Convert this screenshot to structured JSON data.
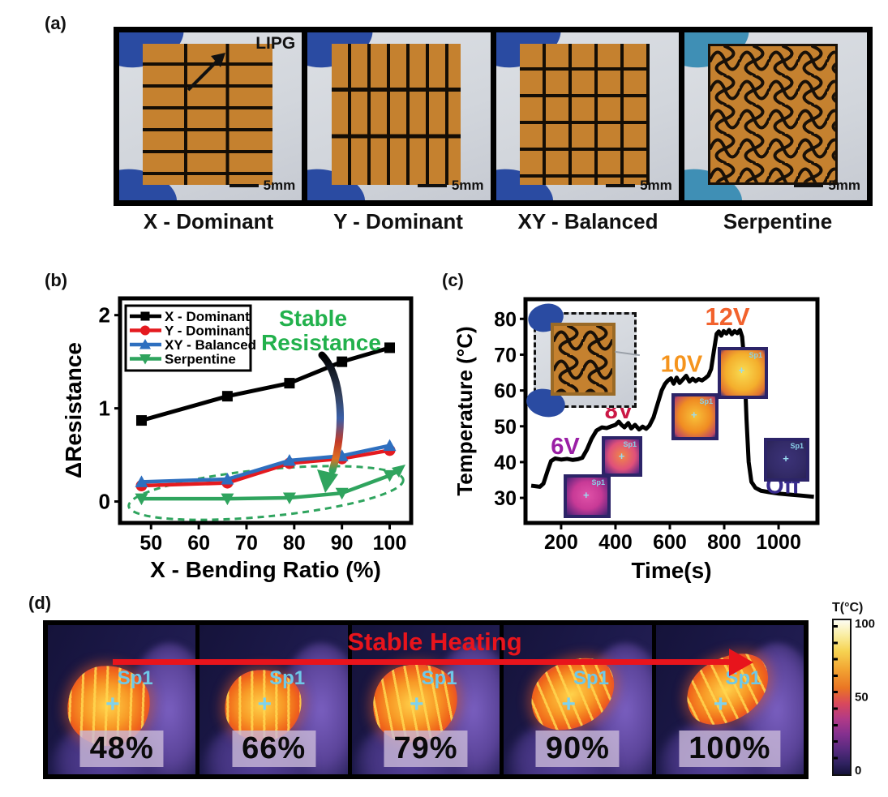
{
  "panels": {
    "a": {
      "label": "(a)",
      "lipg_label": "LIPG",
      "scale_label": "5mm",
      "captions": [
        "X - Dominant",
        "Y - Dominant",
        "XY - Balanced",
        "Serpentine"
      ]
    },
    "b": {
      "label": "(b)"
    },
    "c": {
      "label": "(c)",
      "insets": [
        {
          "spot": "Sp1"
        },
        {
          "spot": "Sp1"
        },
        {
          "spot": "Sp1"
        },
        {
          "spot": "Sp1"
        },
        {
          "spot": "Sp1"
        }
      ]
    },
    "d": {
      "label": "(d)",
      "heading": "Stable Heating",
      "heading_color": "#e8141c",
      "frames": [
        {
          "percent": "48%",
          "spot": "Sp1"
        },
        {
          "percent": "66%",
          "spot": "Sp1"
        },
        {
          "percent": "79%",
          "spot": "Sp1"
        },
        {
          "percent": "90%",
          "spot": "Sp1"
        },
        {
          "percent": "100%",
          "spot": "Sp1"
        }
      ],
      "colorbar": {
        "title": "T(°C)",
        "ticks": [
          "100",
          "50",
          "0"
        ],
        "min": 0,
        "max": 100
      }
    }
  },
  "chart_data": [
    {
      "id": "bending-resistance",
      "type": "line",
      "title": "",
      "xlabel": "X - Bending Ratio (%)",
      "ylabel": "ΔResistance",
      "xlim": [
        43.5,
        104.5
      ],
      "ylim": [
        -0.23,
        2.18
      ],
      "xticks": [
        50,
        60,
        70,
        80,
        90,
        100
      ],
      "yticks": [
        0,
        1,
        2
      ],
      "grid": false,
      "legend_position": "top-left",
      "x": [
        48,
        66,
        79,
        90,
        100
      ],
      "series": [
        {
          "name": "X - Dominant",
          "color": "#000000",
          "marker": "square",
          "values": [
            0.87,
            1.13,
            1.27,
            1.5,
            1.65
          ]
        },
        {
          "name": "Y - Dominant",
          "color": "#e41a1f",
          "marker": "circle",
          "values": [
            0.17,
            0.2,
            0.41,
            0.46,
            0.55
          ]
        },
        {
          "name": "XY - Balanced",
          "color": "#2e6fbf",
          "marker": "triangle-up",
          "values": [
            0.21,
            0.24,
            0.44,
            0.49,
            0.6
          ]
        },
        {
          "name": "Serpentine",
          "color": "#2fa45e",
          "marker": "triangle-down",
          "values": [
            0.03,
            0.03,
            0.04,
            0.09,
            0.28
          ]
        }
      ],
      "annotation": {
        "lines": [
          "Stable",
          "Resistance"
        ],
        "color": "#22b14c"
      }
    },
    {
      "id": "heater-temperature",
      "type": "line",
      "title": "",
      "xlabel": "Time(s)",
      "ylabel": "Temperature (°C)",
      "xlim": [
        69,
        1143
      ],
      "ylim": [
        23,
        85.5
      ],
      "xticks": [
        200,
        400,
        600,
        800,
        1000
      ],
      "yticks": [
        30,
        40,
        50,
        60,
        70,
        80
      ],
      "grid": false,
      "series": [
        {
          "name": "temperature",
          "color": "#000000",
          "points": [
            [
              90,
              33.4
            ],
            [
              122,
              33.1
            ],
            [
              135,
              34
            ],
            [
              150,
              37.5
            ],
            [
              163,
              40.3
            ],
            [
              178,
              41
            ],
            [
              200,
              40.7
            ],
            [
              222,
              40.9
            ],
            [
              243,
              40.6
            ],
            [
              262,
              40.8
            ],
            [
              278,
              41.2
            ],
            [
              295,
              43.5
            ],
            [
              312,
              46.5
            ],
            [
              330,
              48.8
            ],
            [
              350,
              49.7
            ],
            [
              368,
              49.5
            ],
            [
              385,
              50
            ],
            [
              400,
              50.4
            ],
            [
              412,
              51.3
            ],
            [
              422,
              50.4
            ],
            [
              433,
              49.7
            ],
            [
              447,
              50.9
            ],
            [
              458,
              49.4
            ],
            [
              472,
              50.4
            ],
            [
              487,
              49.1
            ],
            [
              500,
              49.9
            ],
            [
              513,
              49.3
            ],
            [
              525,
              50.2
            ],
            [
              540,
              52.5
            ],
            [
              556,
              56.5
            ],
            [
              570,
              60
            ],
            [
              582,
              61.8
            ],
            [
              593,
              62.8
            ],
            [
              604,
              63.4
            ],
            [
              614,
              61.9
            ],
            [
              625,
              63.6
            ],
            [
              636,
              62.1
            ],
            [
              648,
              63.1
            ],
            [
              660,
              64.1
            ],
            [
              672,
              62.5
            ],
            [
              684,
              63.3
            ],
            [
              695,
              62.6
            ],
            [
              706,
              63.2
            ],
            [
              718,
              62.8
            ],
            [
              730,
              63.4
            ],
            [
              742,
              64.2
            ],
            [
              752,
              66
            ],
            [
              762,
              71
            ],
            [
              772,
              75.8
            ],
            [
              780,
              76.5
            ],
            [
              789,
              75.3
            ],
            [
              798,
              76.6
            ],
            [
              808,
              75.9
            ],
            [
              818,
              76.9
            ],
            [
              828,
              75.7
            ],
            [
              838,
              76.6
            ],
            [
              848,
              76
            ],
            [
              858,
              76.9
            ],
            [
              866,
              75
            ],
            [
              874,
              68
            ],
            [
              882,
              52
            ],
            [
              890,
              40
            ],
            [
              900,
              34.5
            ],
            [
              915,
              32.8
            ],
            [
              935,
              32
            ],
            [
              965,
              31.6
            ],
            [
              1000,
              31.2
            ],
            [
              1045,
              30.9
            ],
            [
              1090,
              30.6
            ],
            [
              1130,
              30.3
            ]
          ]
        }
      ],
      "labels": [
        {
          "text": "6V",
          "color": "#9a1fa5",
          "x": 215,
          "y": 44.5
        },
        {
          "text": "8V",
          "color": "#cb1845",
          "x": 413,
          "y": 54.5
        },
        {
          "text": "10V",
          "color": "#f5941d",
          "x": 643,
          "y": 67.5
        },
        {
          "text": "12V",
          "color": "#f2622d",
          "x": 812,
          "y": 80.5
        },
        {
          "text": "Off",
          "color": "#382b8e",
          "x": 1015,
          "y": 33.5
        }
      ]
    }
  ]
}
